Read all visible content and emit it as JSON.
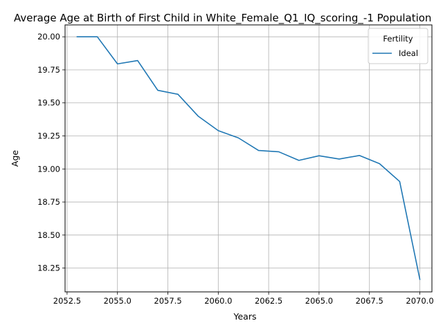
{
  "chart_data": {
    "type": "line",
    "title": "Average Age at Birth of First Child in White_Female_Q1_IQ_scoring_-1 Population",
    "xlabel": "Years",
    "ylabel": "Age",
    "xlim": [
      2052.4,
      2070.6
    ],
    "ylim": [
      18.07,
      20.09
    ],
    "x_ticks": [
      2052.5,
      2055.0,
      2057.5,
      2060.0,
      2062.5,
      2065.0,
      2067.5,
      2070.0
    ],
    "x_tick_labels": [
      "2052.5",
      "2055.0",
      "2057.5",
      "2060.0",
      "2062.5",
      "2065.0",
      "2067.5",
      "2070.0"
    ],
    "y_ticks": [
      18.25,
      18.5,
      18.75,
      19.0,
      19.25,
      19.5,
      19.75,
      20.0
    ],
    "y_tick_labels": [
      "18.25",
      "18.50",
      "18.75",
      "19.00",
      "19.25",
      "19.50",
      "19.75",
      "20.00"
    ],
    "grid": true,
    "legend": {
      "title": "Fertility",
      "placement": "top-right"
    },
    "x": [
      2053,
      2054,
      2055,
      2056,
      2057,
      2058,
      2059,
      2060,
      2061,
      2062,
      2063,
      2064,
      2065,
      2066,
      2067,
      2068,
      2069,
      2070
    ],
    "series": [
      {
        "name": "Ideal",
        "color": "#1f77b4",
        "values": [
          20.0,
          20.0,
          19.795,
          19.82,
          19.595,
          19.565,
          19.4,
          19.29,
          19.235,
          19.14,
          19.13,
          19.065,
          19.1,
          19.075,
          19.102,
          19.04,
          18.905,
          18.165
        ]
      }
    ]
  }
}
